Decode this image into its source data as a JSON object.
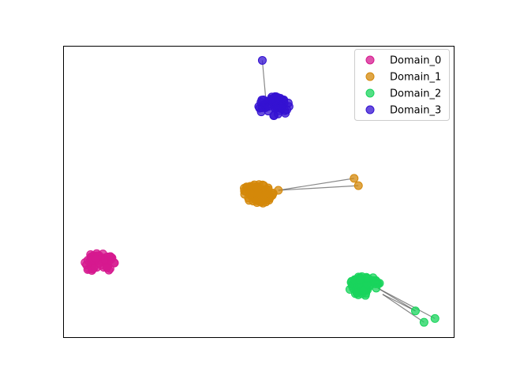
{
  "chart_data": {
    "type": "scatter",
    "title": "",
    "xlabel": "",
    "ylabel": "",
    "xlim": [
      0,
      100
    ],
    "ylim": [
      0,
      100
    ],
    "grid": false,
    "axis_ticks": false,
    "legend_position": "top-right",
    "series": [
      {
        "name": "Domain_0",
        "color": "#d6198f",
        "cluster": {
          "center": [
            9.1,
            25.5
          ],
          "spread": [
            4.2,
            3.4
          ],
          "count": 60
        },
        "points": []
      },
      {
        "name": "Domain_1",
        "color": "#d4880a",
        "cluster": {
          "center": [
            49.6,
            49.1
          ],
          "spread": [
            4.2,
            3.4
          ],
          "count": 60
        },
        "points": [
          [
            55.1,
            50.4
          ],
          [
            74.5,
            54.5
          ],
          [
            75.6,
            52.0
          ]
        ]
      },
      {
        "name": "Domain_2",
        "color": "#19d45c",
        "cluster": {
          "center": [
            77.0,
            17.6
          ],
          "spread": [
            4.2,
            3.4
          ],
          "count": 60
        },
        "points": [
          [
            90.2,
            9.0
          ],
          [
            92.4,
            5.1
          ],
          [
            95.2,
            6.4
          ]
        ]
      },
      {
        "name": "Domain_3",
        "color": "#3412d1",
        "cluster": {
          "center": [
            54.0,
            79.2
          ],
          "spread": [
            4.2,
            3.4
          ],
          "count": 60
        },
        "points": [
          [
            51.0,
            95.0
          ]
        ]
      }
    ],
    "edges": [
      {
        "series": 1,
        "from": [
          55.1,
          50.4
        ],
        "to": [
          74.5,
          54.5
        ]
      },
      {
        "series": 1,
        "from": [
          55.1,
          50.4
        ],
        "to": [
          75.6,
          52.0
        ]
      },
      {
        "series": 2,
        "from": [
          80.6,
          16.8
        ],
        "to": [
          90.2,
          9.0
        ]
      },
      {
        "series": 2,
        "from": [
          80.6,
          16.8
        ],
        "to": [
          95.2,
          6.4
        ]
      },
      {
        "series": 2,
        "from": [
          81.8,
          14.7
        ],
        "to": [
          92.4,
          5.1
        ]
      },
      {
        "series": 2,
        "from": [
          81.8,
          14.7
        ],
        "to": [
          90.2,
          9.0
        ]
      },
      {
        "series": 3,
        "from": [
          51.0,
          95.0
        ],
        "to": [
          52.0,
          80.0
        ]
      }
    ]
  }
}
